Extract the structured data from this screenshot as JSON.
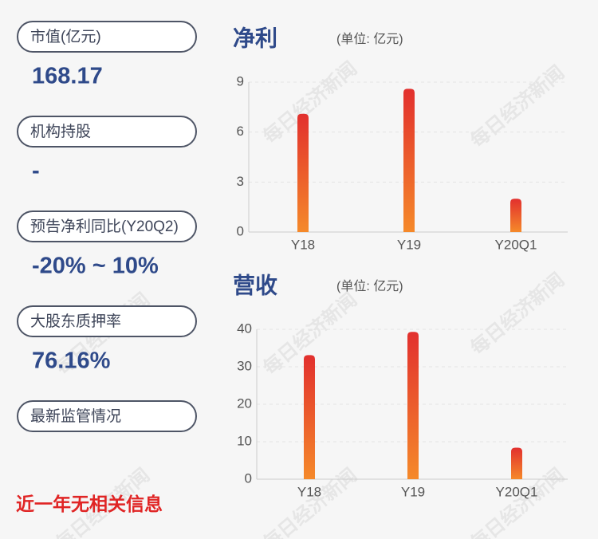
{
  "panel": {
    "items": [
      {
        "label": "市值(亿元)",
        "value": "168.17"
      },
      {
        "label": "机构持股",
        "value": "-"
      },
      {
        "label": "预告净利同比(Y20Q2)",
        "value": "-20% ~ 10%"
      },
      {
        "label": "大股东质押率",
        "value": "76.16%"
      },
      {
        "label": "最新监管情况",
        "value": "近一年无相关信息"
      }
    ]
  },
  "watermark": "每日经济新闻",
  "chart_data": [
    {
      "type": "bar",
      "title": "净利",
      "subtitle": "(单位: 亿元)",
      "categories": [
        "Y18",
        "Y19",
        "Y20Q1"
      ],
      "values": [
        7.1,
        8.6,
        2.0
      ],
      "colors": [
        "#e2302e",
        "#f5892a"
      ],
      "ylim": [
        0,
        9
      ],
      "yticks": [
        0,
        3,
        6,
        9
      ],
      "grid": true
    },
    {
      "type": "bar",
      "title": "营收",
      "subtitle": "(单位: 亿元)",
      "categories": [
        "Y18",
        "Y19",
        "Y20Q1"
      ],
      "values": [
        33.1,
        39.3,
        8.4
      ],
      "colors": [
        "#e2302e",
        "#f5892a"
      ],
      "ylim": [
        0,
        40
      ],
      "yticks": [
        0,
        10,
        20,
        30,
        40
      ],
      "grid": true
    }
  ]
}
